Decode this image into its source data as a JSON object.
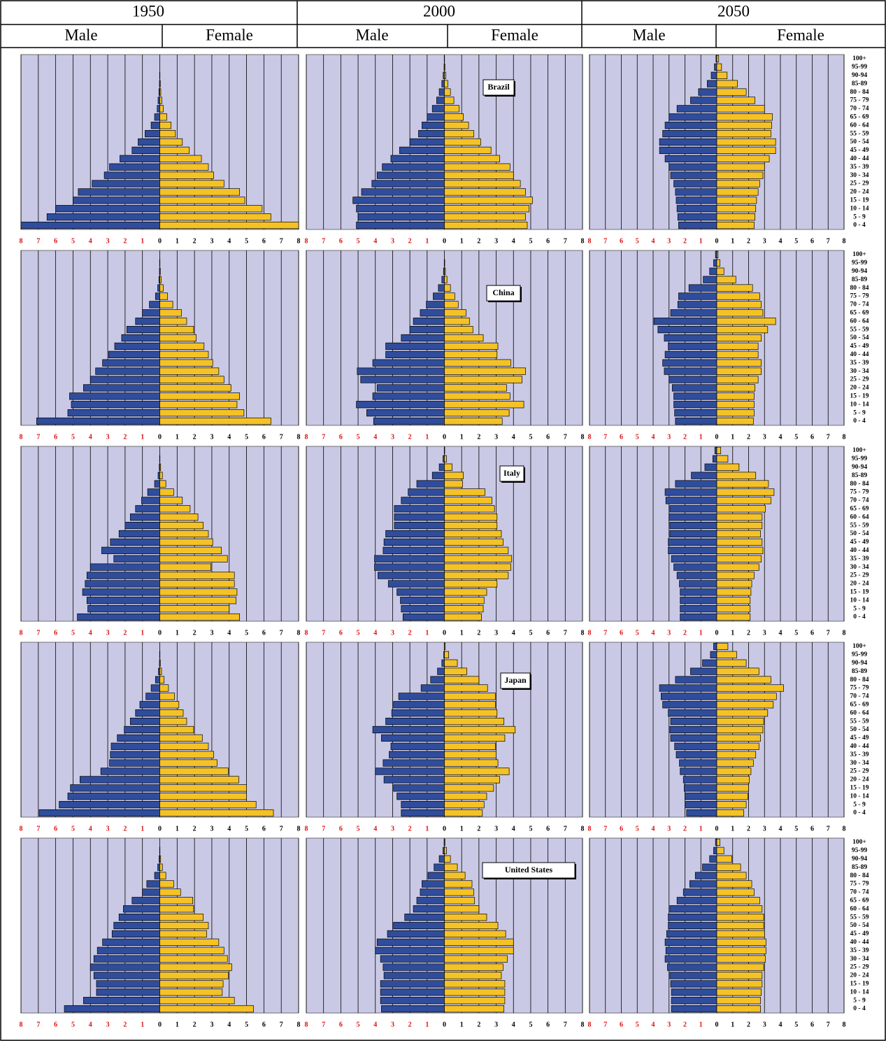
{
  "chart_data": {
    "type": "pyramid",
    "columns": [
      "1950",
      "2000",
      "2050"
    ],
    "series": [
      {
        "name": "Male",
        "color": "#2f4d9c"
      },
      {
        "name": "Female",
        "color": "#f5c226"
      }
    ],
    "categories": [
      "0 - 4",
      "5 - 9",
      "10 - 14",
      "15 - 19",
      "20 - 24",
      "25 - 29",
      "30 - 34",
      "35 - 39",
      "40 - 44",
      "45 - 49",
      "50 - 54",
      "55 - 59",
      "60 - 64",
      "65 - 69",
      "70 - 74",
      "75 - 79",
      "80 - 84",
      "85-89",
      "90-94",
      "95-99",
      "100+"
    ],
    "xlim": [
      0,
      8
    ],
    "xticks": [
      0,
      1,
      2,
      3,
      4,
      5,
      6,
      7,
      8
    ],
    "grid": true,
    "panels": [
      {
        "country": "Brazil",
        "data": [
          [
            [
              8.0,
              6.5,
              6.0,
              5.0,
              4.7,
              3.9,
              3.2,
              2.9,
              2.3,
              1.6,
              1.25,
              0.85,
              0.5,
              0.3,
              0.15,
              0.1,
              0.05,
              0.02,
              0.01,
              0,
              0
            ],
            [
              8.0,
              6.4,
              5.9,
              4.9,
              4.6,
              3.7,
              3.1,
              2.8,
              2.4,
              1.7,
              1.3,
              0.9,
              0.65,
              0.4,
              0.2,
              0.12,
              0.06,
              0.03,
              0.01,
              0,
              0
            ]
          ],
          [
            [
              5.1,
              5.0,
              5.1,
              5.3,
              4.8,
              4.2,
              3.9,
              3.6,
              3.1,
              2.6,
              2.0,
              1.5,
              1.3,
              1.0,
              0.7,
              0.45,
              0.3,
              0.15,
              0.07,
              0.02,
              0.01
            ],
            [
              4.8,
              4.7,
              4.9,
              5.1,
              4.7,
              4.4,
              4.0,
              3.8,
              3.2,
              2.7,
              2.1,
              1.7,
              1.4,
              1.1,
              0.85,
              0.55,
              0.35,
              0.2,
              0.08,
              0.03,
              0.01
            ]
          ],
          [
            [
              2.4,
              2.45,
              2.5,
              2.55,
              2.6,
              2.7,
              2.9,
              3.0,
              3.25,
              3.6,
              3.6,
              3.4,
              3.25,
              3.0,
              2.5,
              1.65,
              1.15,
              0.6,
              0.35,
              0.15,
              0.05
            ],
            [
              2.35,
              2.4,
              2.45,
              2.5,
              2.6,
              2.7,
              2.9,
              3.0,
              3.3,
              3.7,
              3.7,
              3.4,
              3.45,
              3.5,
              3.0,
              2.4,
              1.85,
              1.3,
              0.65,
              0.3,
              0.12
            ]
          ]
        ]
      },
      {
        "country": "China",
        "data": [
          [
            [
              7.1,
              5.3,
              5.1,
              5.2,
              4.4,
              4.0,
              3.7,
              3.3,
              2.95,
              2.6,
              2.2,
              1.9,
              1.4,
              1.0,
              0.6,
              0.25,
              0.12,
              0.05,
              0.02,
              0.01,
              0
            ],
            [
              6.4,
              4.85,
              4.45,
              4.6,
              4.1,
              3.7,
              3.4,
              3.05,
              2.8,
              2.55,
              2.1,
              1.95,
              1.55,
              1.25,
              0.75,
              0.45,
              0.2,
              0.08,
              0.03,
              0.01,
              0
            ]
          ],
          [
            [
              4.1,
              4.5,
              5.1,
              4.15,
              3.9,
              4.85,
              5.05,
              4.15,
              3.4,
              3.4,
              2.5,
              2.0,
              1.8,
              1.4,
              1.05,
              0.65,
              0.35,
              0.15,
              0.05,
              0.01,
              0
            ],
            [
              3.35,
              3.75,
              4.6,
              3.8,
              3.6,
              4.5,
              4.7,
              3.85,
              3.05,
              3.1,
              2.25,
              1.65,
              1.45,
              1.25,
              0.8,
              0.6,
              0.35,
              0.15,
              0.06,
              0.02,
              0
            ]
          ],
          [
            [
              2.6,
              2.65,
              2.7,
              2.7,
              2.8,
              3.0,
              3.3,
              3.4,
              3.25,
              3.05,
              3.3,
              3.7,
              3.95,
              2.9,
              2.45,
              2.4,
              1.75,
              0.85,
              0.45,
              0.2,
              0.08
            ],
            [
              2.3,
              2.35,
              2.35,
              2.35,
              2.4,
              2.6,
              2.8,
              2.8,
              2.6,
              2.6,
              2.8,
              3.2,
              3.7,
              2.9,
              2.8,
              2.7,
              2.25,
              1.2,
              0.45,
              0.2,
              0.08
            ]
          ]
        ]
      },
      {
        "country": "Italy",
        "data": [
          [
            [
              4.75,
              4.15,
              4.2,
              4.45,
              4.3,
              4.2,
              4.0,
              2.65,
              3.35,
              2.85,
              2.35,
              2.0,
              1.7,
              1.4,
              1.05,
              0.7,
              0.3,
              0.1,
              0.03,
              0.01,
              0
            ],
            [
              4.6,
              4.0,
              4.4,
              4.45,
              4.3,
              4.3,
              2.95,
              3.9,
              3.55,
              3.05,
              2.8,
              2.5,
              2.2,
              1.75,
              1.3,
              0.8,
              0.35,
              0.15,
              0.05,
              0.01,
              0
            ]
          ],
          [
            [
              2.4,
              2.5,
              2.55,
              2.75,
              3.25,
              3.85,
              4.05,
              4.05,
              3.55,
              3.5,
              3.4,
              2.9,
              2.9,
              2.9,
              2.5,
              2.1,
              1.6,
              0.7,
              0.3,
              0.08,
              0.01
            ],
            [
              2.15,
              2.25,
              2.3,
              2.45,
              3.05,
              3.7,
              3.85,
              3.9,
              3.7,
              3.4,
              3.3,
              3.05,
              3.05,
              2.9,
              2.75,
              2.35,
              1.05,
              1.1,
              0.45,
              0.12,
              0.02
            ]
          ],
          [
            [
              2.3,
              2.3,
              2.3,
              2.3,
              2.35,
              2.5,
              2.7,
              2.85,
              3.05,
              3.05,
              2.95,
              2.95,
              3.0,
              2.95,
              3.2,
              3.25,
              2.6,
              1.6,
              0.75,
              0.25,
              0.12
            ],
            [
              2.1,
              2.1,
              2.1,
              2.15,
              2.2,
              2.35,
              2.65,
              2.8,
              2.9,
              2.85,
              2.75,
              2.85,
              2.85,
              3.05,
              3.4,
              3.6,
              3.25,
              2.45,
              1.4,
              0.7,
              0.25
            ]
          ]
        ]
      },
      {
        "country": "Japan",
        "data": [
          [
            [
              6.95,
              5.8,
              5.3,
              5.15,
              4.6,
              3.4,
              2.9,
              2.85,
              2.8,
              2.45,
              2.05,
              1.7,
              1.4,
              1.15,
              0.8,
              0.5,
              0.25,
              0.08,
              0.02,
              0.01,
              0
            ],
            [
              6.55,
              5.55,
              5.0,
              5.0,
              4.55,
              3.95,
              3.3,
              3.1,
              2.8,
              2.45,
              1.95,
              1.55,
              1.35,
              1.1,
              0.85,
              0.5,
              0.25,
              0.1,
              0.03,
              0.01,
              0
            ]
          ],
          [
            [
              2.5,
              2.5,
              2.75,
              2.95,
              3.5,
              4.0,
              3.55,
              3.2,
              3.1,
              3.65,
              4.15,
              3.4,
              3.05,
              2.95,
              2.65,
              1.35,
              0.8,
              0.4,
              0.15,
              0.04,
              0.01
            ],
            [
              2.2,
              2.3,
              2.45,
              2.85,
              3.2,
              3.75,
              3.1,
              3.0,
              2.95,
              3.5,
              4.1,
              3.45,
              3.05,
              2.95,
              2.95,
              2.5,
              2.0,
              1.3,
              0.75,
              0.25,
              0.05
            ]
          ],
          [
            [
              1.9,
              1.95,
              2.0,
              2.05,
              2.1,
              2.3,
              2.35,
              2.55,
              2.65,
              2.9,
              2.95,
              2.9,
              3.05,
              3.4,
              3.5,
              3.6,
              2.6,
              1.65,
              0.9,
              0.4,
              0.2
            ],
            [
              1.7,
              1.85,
              1.95,
              2.0,
              2.05,
              2.15,
              2.3,
              2.45,
              2.65,
              2.75,
              2.9,
              2.95,
              3.2,
              3.55,
              3.75,
              4.2,
              3.4,
              2.65,
              1.85,
              1.25,
              0.7
            ]
          ]
        ]
      },
      {
        "country": "United States",
        "data": [
          [
            [
              5.5,
              4.4,
              3.65,
              3.65,
              3.8,
              4.0,
              3.8,
              3.6,
              3.3,
              2.75,
              2.65,
              2.35,
              2.1,
              1.6,
              1.0,
              0.75,
              0.3,
              0.12,
              0.04,
              0.01,
              0
            ],
            [
              5.4,
              4.3,
              3.6,
              3.65,
              3.95,
              4.15,
              3.9,
              3.7,
              3.4,
              2.7,
              2.8,
              2.5,
              1.95,
              1.9,
              1.2,
              0.8,
              0.35,
              0.15,
              0.05,
              0.01,
              0
            ]
          ],
          [
            [
              3.65,
              3.7,
              3.7,
              3.7,
              3.5,
              3.55,
              3.7,
              4.0,
              3.9,
              3.3,
              2.95,
              2.3,
              1.8,
              1.6,
              1.4,
              1.3,
              0.95,
              0.6,
              0.3,
              0.08,
              0.02
            ],
            [
              3.45,
              3.5,
              3.5,
              3.5,
              3.3,
              3.4,
              3.65,
              4.0,
              4.0,
              3.55,
              3.1,
              2.45,
              2.0,
              1.75,
              1.7,
              1.6,
              1.2,
              0.75,
              0.35,
              0.12,
              0.03
            ]
          ],
          [
            [
              2.85,
              2.85,
              2.85,
              2.9,
              2.95,
              3.1,
              3.25,
              3.2,
              3.25,
              3.15,
              3.05,
              3.05,
              2.95,
              2.5,
              2.1,
              1.7,
              1.35,
              0.9,
              0.45,
              0.2,
              0.08
            ],
            [
              2.75,
              2.75,
              2.8,
              2.85,
              2.85,
              2.95,
              3.05,
              3.1,
              3.1,
              3.0,
              2.95,
              2.95,
              2.85,
              2.7,
              2.35,
              2.2,
              1.85,
              1.5,
              0.95,
              0.45,
              0.2
            ]
          ]
        ]
      }
    ]
  }
}
